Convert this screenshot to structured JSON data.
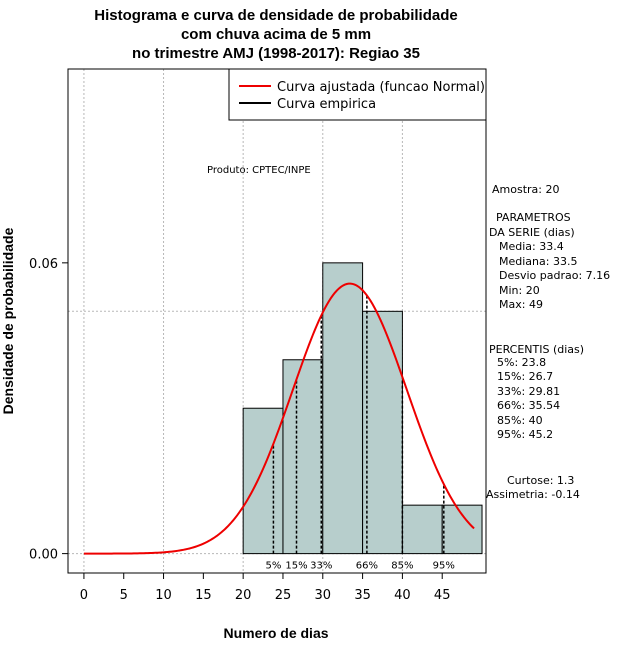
{
  "chart_data": {
    "type": "bar",
    "title_lines": [
      "Histograma e curva de densidade de probabilidade",
      "com chuva acima de 5 mm",
      "no trimestre AMJ (1998-2017): Regiao 35"
    ],
    "xlabel": "Numero de dias",
    "ylabel": "Densidade de probabilidade",
    "xlim": [
      -2,
      50.5
    ],
    "ylim": [
      -0.004,
      0.1
    ],
    "x_ticks": [
      0,
      5,
      10,
      15,
      20,
      25,
      30,
      35,
      40,
      45
    ],
    "y_ticks": [
      0.0,
      0.06
    ],
    "y_tick_labels": [
      "0.00",
      "0.06"
    ],
    "grid_x": [
      0,
      10,
      20,
      30,
      40
    ],
    "grid_y": [
      0.0,
      0.05,
      0.1
    ],
    "bins": [
      {
        "x0": 20,
        "x1": 25,
        "density": 0.03
      },
      {
        "x0": 25,
        "x1": 30,
        "density": 0.04
      },
      {
        "x0": 30,
        "x1": 35,
        "density": 0.06
      },
      {
        "x0": 35,
        "x1": 40,
        "density": 0.05
      },
      {
        "x0": 40,
        "x1": 45,
        "density": 0.01
      },
      {
        "x0": 45,
        "x1": 50,
        "density": 0.01
      }
    ],
    "normal_fit": {
      "mean": 33.4,
      "sd": 7.16,
      "x_from": 0,
      "x_to": 49
    },
    "percentile_lines": [
      {
        "label": "5%",
        "x": 23.8
      },
      {
        "label": "15%",
        "x": 26.7
      },
      {
        "label": "33%",
        "x": 29.81
      },
      {
        "label": "66%",
        "x": 35.54
      },
      {
        "label": "85%",
        "x": 40
      },
      {
        "label": "95%",
        "x": 45.2
      }
    ],
    "legend": [
      {
        "label": "Curva ajustada (funcao Normal)",
        "color": "#ee0000"
      },
      {
        "label": "Curva empirica",
        "color": "#000000"
      }
    ],
    "legend_position": "top-right",
    "bar_color": "#b7cecc",
    "annotation": "Produto: CPTEC/INPE"
  },
  "stats_panel": {
    "sample": "Amostra: 20",
    "params_title": "PARAMETROS",
    "params_subtitle": "DA SERIE (dias)",
    "params": [
      "Media: 33.4",
      "Mediana: 33.5",
      "Desvio padrao: 7.16",
      "Min: 20",
      "Max: 49"
    ],
    "percentis_title": "PERCENTIS (dias)",
    "percentis": [
      "5%: 23.8",
      "15%: 26.7",
      "33%: 29.81",
      "66%: 35.54",
      "85%: 40",
      "95%: 45.2"
    ],
    "curtose": "Curtose: 1.3",
    "assimetria": "Assimetria: -0.14"
  }
}
